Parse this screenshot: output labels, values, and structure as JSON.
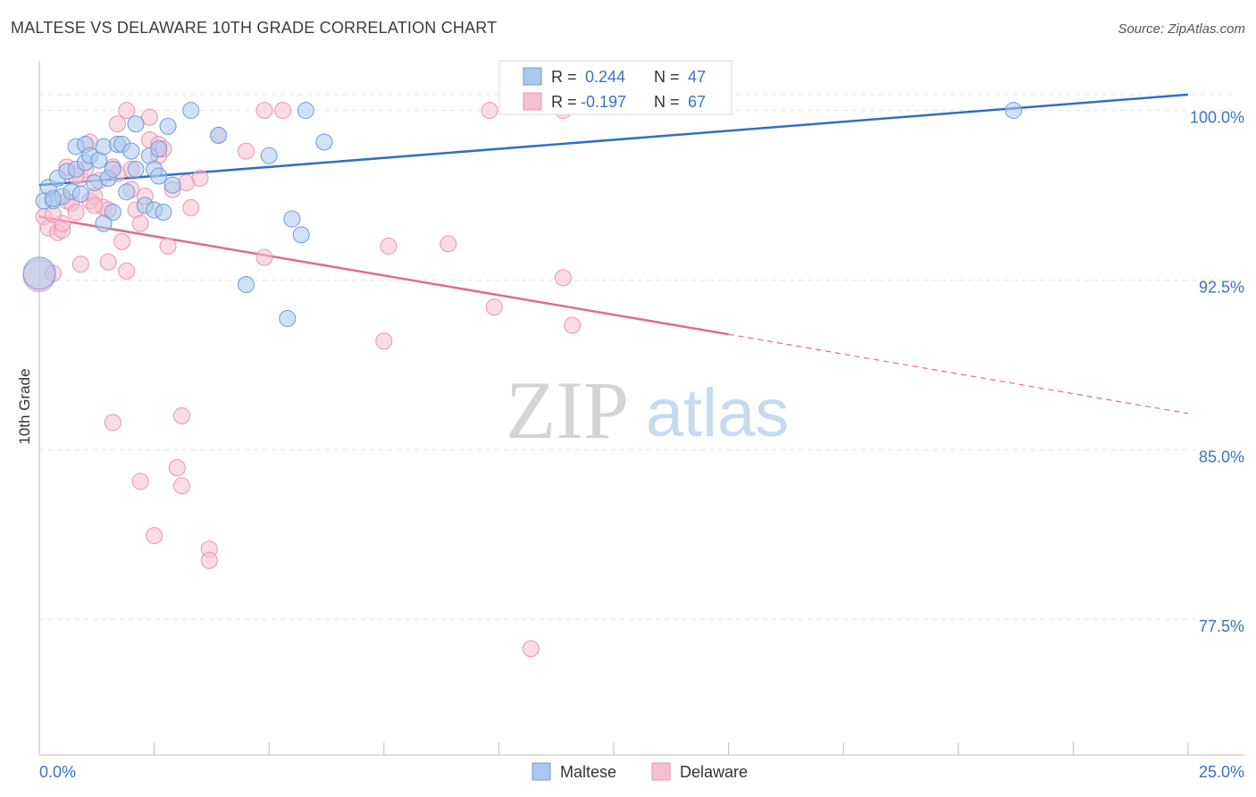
{
  "header": {
    "title": "MALTESE VS DELAWARE 10TH GRADE CORRELATION CHART",
    "source": "Source: ZipAtlas.com"
  },
  "watermark": {
    "zip": "ZIP",
    "atlas": "atlas"
  },
  "legend_top": {
    "rows": [
      {
        "r_label": "R = ",
        "r_value": "0.244",
        "n_label": "N = ",
        "n_value": "47"
      },
      {
        "r_label": "R = ",
        "r_value": "-0.197",
        "n_label": "N = ",
        "n_value": "67"
      }
    ]
  },
  "legend_bottom": [
    "Maltese",
    "Delaware"
  ],
  "colors": {
    "maltese_fill": "#aac8ee",
    "maltese_stroke": "#6f9bd6",
    "maltese_line": "#2f6fc6",
    "delaware_fill": "#f6bfd0",
    "delaware_stroke": "#ea93b1",
    "delaware_line": "#e06a94",
    "value_text": "#3b72c8",
    "grid": "#e3e3e3"
  },
  "chart_data": {
    "type": "scatter",
    "title": "MALTESE VS DELAWARE 10TH GRADE CORRELATION CHART",
    "xlabel": "",
    "ylabel": "10th Grade",
    "xlim": [
      0,
      25
    ],
    "ylim": [
      71.5,
      101.8
    ],
    "x_tick_labels": [
      "0.0%",
      "25.0%"
    ],
    "y_ticks": [
      77.5,
      85.0,
      92.5,
      100.0
    ],
    "y_tick_labels": [
      "77.5%",
      "85.0%",
      "92.5%",
      "100.0%"
    ],
    "grid": true,
    "legend": "bottom-center",
    "series": [
      {
        "name": "Maltese",
        "r": 0.244,
        "n": 47,
        "trend": {
          "x0": 0,
          "y0": 96.7,
          "x1": 25,
          "y1": 100.7
        },
        "points": [
          [
            0.2,
            96.6
          ],
          [
            0.3,
            96.0
          ],
          [
            0.4,
            97.0
          ],
          [
            0.5,
            96.2
          ],
          [
            0.6,
            97.3
          ],
          [
            0.7,
            96.4
          ],
          [
            0.8,
            97.4
          ],
          [
            0.9,
            96.3
          ],
          [
            0.8,
            98.4
          ],
          [
            1.0,
            98.5
          ],
          [
            1.0,
            97.7
          ],
          [
            1.1,
            98.0
          ],
          [
            1.2,
            96.8
          ],
          [
            1.3,
            97.8
          ],
          [
            1.4,
            98.4
          ],
          [
            1.5,
            97.0
          ],
          [
            1.6,
            97.4
          ],
          [
            1.6,
            95.5
          ],
          [
            1.4,
            95.0
          ],
          [
            1.7,
            98.5
          ],
          [
            1.8,
            98.5
          ],
          [
            1.9,
            96.4
          ],
          [
            2.0,
            98.2
          ],
          [
            2.1,
            97.4
          ],
          [
            2.1,
            99.4
          ],
          [
            2.3,
            95.8
          ],
          [
            2.4,
            98.0
          ],
          [
            2.5,
            95.6
          ],
          [
            2.5,
            97.4
          ],
          [
            2.6,
            97.1
          ],
          [
            2.6,
            98.3
          ],
          [
            2.7,
            95.5
          ],
          [
            2.8,
            99.3
          ],
          [
            2.9,
            96.7
          ],
          [
            3.3,
            100.0
          ],
          [
            3.9,
            98.9
          ],
          [
            4.5,
            92.3
          ],
          [
            5.0,
            98.0
          ],
          [
            5.4,
            90.8
          ],
          [
            5.5,
            95.2
          ],
          [
            5.7,
            94.5
          ],
          [
            5.8,
            100.0
          ],
          [
            6.2,
            98.6
          ],
          [
            21.2,
            100.0
          ],
          [
            0.0,
            92.8
          ],
          [
            0.1,
            96.0
          ],
          [
            0.3,
            96.1
          ]
        ]
      },
      {
        "name": "Delaware",
        "r": -0.197,
        "n": 67,
        "trend": {
          "x0": 0,
          "y0": 95.3,
          "x1": 15,
          "y1": 90.1
        },
        "trend_dashed": {
          "x0": 15,
          "y0": 90.1,
          "x1": 25,
          "y1": 86.6
        },
        "points": [
          [
            0.0,
            92.7
          ],
          [
            0.1,
            95.3
          ],
          [
            0.2,
            94.8
          ],
          [
            0.3,
            92.8
          ],
          [
            0.4,
            94.6
          ],
          [
            0.5,
            94.7
          ],
          [
            0.5,
            95.0
          ],
          [
            0.6,
            96.0
          ],
          [
            0.7,
            95.9
          ],
          [
            0.8,
            95.5
          ],
          [
            0.9,
            93.2
          ],
          [
            0.9,
            97.0
          ],
          [
            1.0,
            97.4
          ],
          [
            1.1,
            96.0
          ],
          [
            1.1,
            98.6
          ],
          [
            1.2,
            96.2
          ],
          [
            1.3,
            96.9
          ],
          [
            1.4,
            95.7
          ],
          [
            1.5,
            95.6
          ],
          [
            1.5,
            93.3
          ],
          [
            1.6,
            97.5
          ],
          [
            1.6,
            86.2
          ],
          [
            1.7,
            99.4
          ],
          [
            1.8,
            94.2
          ],
          [
            1.9,
            100.0
          ],
          [
            1.9,
            92.9
          ],
          [
            2.0,
            97.4
          ],
          [
            2.1,
            95.6
          ],
          [
            2.2,
            95.0
          ],
          [
            2.2,
            83.6
          ],
          [
            2.3,
            96.2
          ],
          [
            2.4,
            98.7
          ],
          [
            2.4,
            99.7
          ],
          [
            2.5,
            81.2
          ],
          [
            2.6,
            98.0
          ],
          [
            2.6,
            98.5
          ],
          [
            2.7,
            98.3
          ],
          [
            2.8,
            94.0
          ],
          [
            2.9,
            96.5
          ],
          [
            3.0,
            84.2
          ],
          [
            3.1,
            86.5
          ],
          [
            3.1,
            83.4
          ],
          [
            3.2,
            96.8
          ],
          [
            3.3,
            95.7
          ],
          [
            3.5,
            97.0
          ],
          [
            3.7,
            80.6
          ],
          [
            3.7,
            80.1
          ],
          [
            3.9,
            98.9
          ],
          [
            4.5,
            98.2
          ],
          [
            4.9,
            93.5
          ],
          [
            4.9,
            100.0
          ],
          [
            5.3,
            100.0
          ],
          [
            7.5,
            89.8
          ],
          [
            7.6,
            94.0
          ],
          [
            8.9,
            94.1
          ],
          [
            9.8,
            100.0
          ],
          [
            9.9,
            91.3
          ],
          [
            10.7,
            76.2
          ],
          [
            11.4,
            100.0
          ],
          [
            11.4,
            92.6
          ],
          [
            11.6,
            90.5
          ],
          [
            0.6,
            97.5
          ],
          [
            0.8,
            97.1
          ],
          [
            1.2,
            95.8
          ],
          [
            2.0,
            96.5
          ],
          [
            0.3,
            95.4
          ],
          [
            1.7,
            97.2
          ]
        ]
      }
    ]
  }
}
